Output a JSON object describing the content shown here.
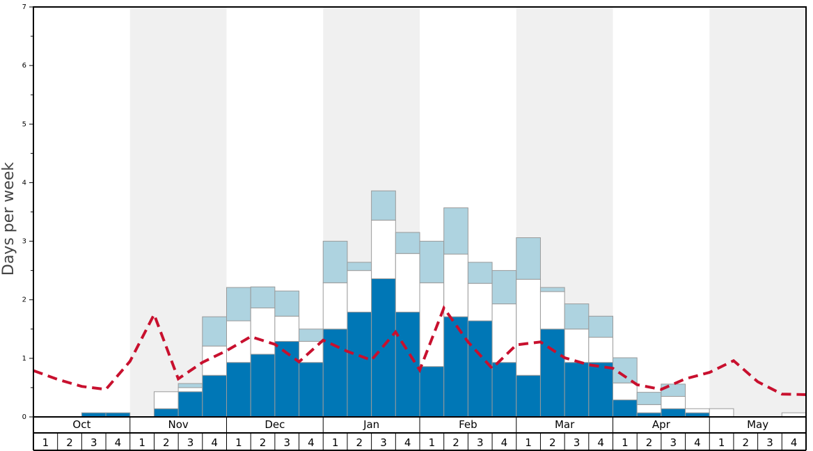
{
  "chart_data": {
    "type": "bar",
    "ylabel": "Days per week",
    "ylim": [
      0,
      7
    ],
    "yticks": [
      "0",
      "1",
      "2",
      "3",
      "4",
      "5",
      "6",
      "7"
    ],
    "months": [
      "Oct",
      "Nov",
      "Dec",
      "Jan",
      "Feb",
      "Mar",
      "Apr",
      "May"
    ],
    "weeks": [
      "1",
      "2",
      "3",
      "4"
    ],
    "shaded_months": [
      "Nov",
      "Jan",
      "Mar",
      "May"
    ],
    "stacked": true,
    "series": [
      {
        "color": "#0077b6",
        "values": [
          0,
          0,
          0.07,
          0.07,
          0,
          0.14,
          0.43,
          0.71,
          0.93,
          1.07,
          1.29,
          0.93,
          1.5,
          1.79,
          2.36,
          1.79,
          0.86,
          1.71,
          1.64,
          0.93,
          0.71,
          1.5,
          0.93,
          0.93,
          0.29,
          0.07,
          0.14,
          0.07,
          0,
          0,
          0,
          0
        ]
      },
      {
        "color": "#ffffff",
        "values": [
          0,
          0,
          0,
          0,
          0,
          0.29,
          0.07,
          0.5,
          0.71,
          0.79,
          0.43,
          0.36,
          0.79,
          0.71,
          1.0,
          1.0,
          1.43,
          1.07,
          0.64,
          1.0,
          1.64,
          0.64,
          0.57,
          0.43,
          0.29,
          0.14,
          0.21,
          0.07,
          0.14,
          0,
          0,
          0.07
        ]
      },
      {
        "color": "#aed3e0",
        "values": [
          0,
          0,
          0,
          0,
          0,
          0,
          0.07,
          0.5,
          0.57,
          0.36,
          0.43,
          0.21,
          0.71,
          0.14,
          0.5,
          0.36,
          0.71,
          0.79,
          0.36,
          0.57,
          0.71,
          0.07,
          0.43,
          0.36,
          0.43,
          0.21,
          0.21,
          0,
          0,
          0,
          0,
          0
        ]
      }
    ],
    "line": {
      "color": "#c8102e",
      "style": "dashed",
      "values": [
        0.79,
        0.64,
        0.52,
        0.47,
        0.95,
        1.75,
        0.65,
        0.93,
        1.13,
        1.37,
        1.24,
        0.94,
        1.31,
        1.12,
        0.97,
        1.45,
        0.8,
        1.86,
        1.28,
        0.83,
        1.23,
        1.28,
        1.01,
        0.89,
        0.83,
        0.55,
        0.47,
        0.65,
        0.76,
        0.96,
        0.6,
        0.39,
        0.38
      ]
    }
  }
}
